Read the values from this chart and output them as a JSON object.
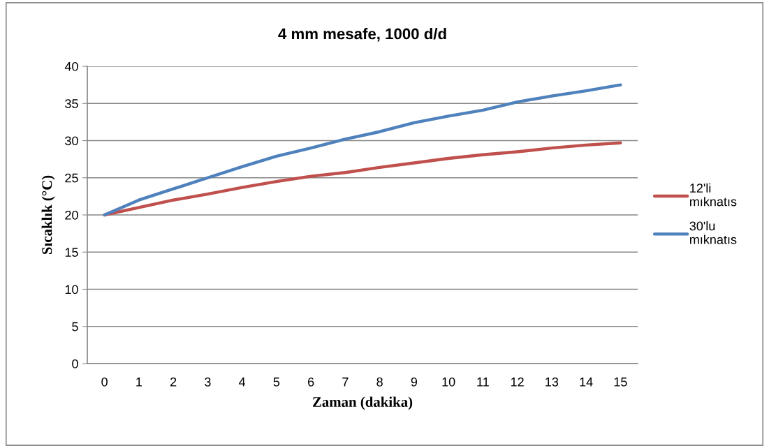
{
  "chart_data": {
    "type": "line",
    "title": "4 mm mesafe, 1000 d/d",
    "xlabel": "Zaman (dakika)",
    "ylabel": "Sıcaklık (°C)",
    "categories": [
      "0",
      "1",
      "2",
      "3",
      "4",
      "5",
      "6",
      "7",
      "8",
      "9",
      "10",
      "11",
      "12",
      "13",
      "14",
      "15"
    ],
    "series": [
      {
        "name": "12'li mıknatıs",
        "color": "#c0504d",
        "values": [
          20,
          21,
          22,
          22.8,
          23.7,
          24.5,
          25.2,
          25.7,
          26.4,
          27,
          27.6,
          28.1,
          28.5,
          29,
          29.4,
          29.7
        ]
      },
      {
        "name": "30'lu mıknatıs",
        "color": "#4f81bd",
        "values": [
          20,
          22,
          23.5,
          25,
          26.5,
          27.9,
          29,
          30.2,
          31.2,
          32.4,
          33.3,
          34.1,
          35.2,
          36,
          36.7,
          37.5
        ]
      }
    ],
    "ylim": [
      0,
      40
    ],
    "yticks": [
      0,
      5,
      10,
      15,
      20,
      25,
      30,
      35,
      40
    ],
    "grid": "y",
    "legend": "right",
    "marker": "none",
    "line_style": "solid"
  }
}
